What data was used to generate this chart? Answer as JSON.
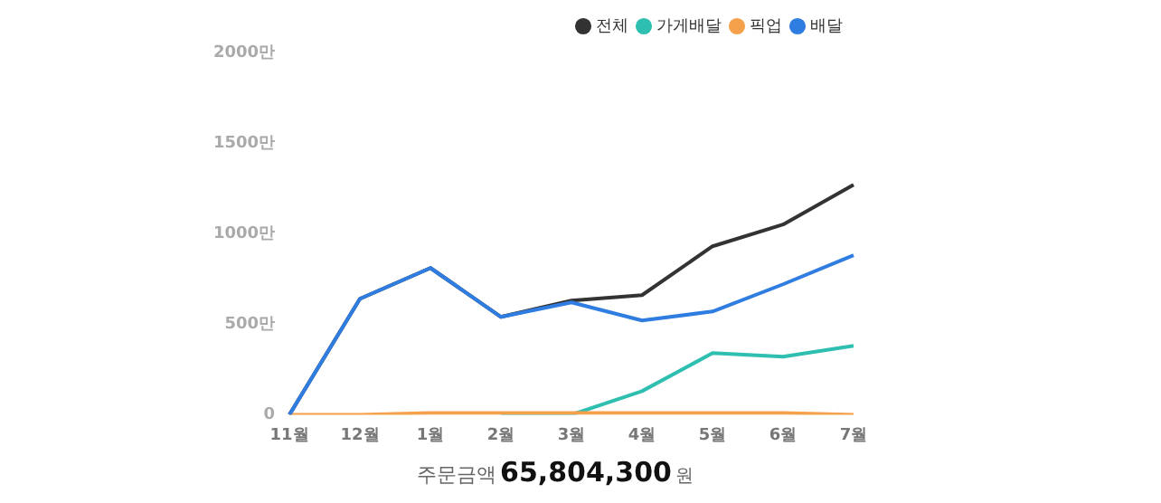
{
  "chart_data": {
    "type": "line",
    "categories": [
      "11월",
      "12월",
      "1월",
      "2월",
      "3월",
      "4월",
      "5월",
      "6월",
      "7월"
    ],
    "series": [
      {
        "name": "전체",
        "color": "#333333",
        "values": [
          0,
          640,
          810,
          540,
          630,
          660,
          930,
          1050,
          1270
        ]
      },
      {
        "name": "가게배달",
        "color": "#2ebfb0",
        "values": [
          null,
          null,
          null,
          0,
          0,
          130,
          340,
          320,
          380
        ]
      },
      {
        "name": "픽업",
        "color": "#f5a04a",
        "values": [
          0,
          0,
          10,
          10,
          10,
          10,
          10,
          10,
          0
        ]
      },
      {
        "name": "배달",
        "color": "#2f7de1",
        "values": [
          0,
          640,
          810,
          540,
          620,
          520,
          570,
          720,
          880
        ]
      }
    ],
    "ylim": [
      0,
      2000
    ],
    "yticks": [
      {
        "value": 0,
        "label": "0"
      },
      {
        "value": 500,
        "label": "500만"
      },
      {
        "value": 1000,
        "label": "1000만"
      },
      {
        "value": 1500,
        "label": "1500만"
      },
      {
        "value": 2000,
        "label": "2000만"
      }
    ],
    "grid": false,
    "legend": "top right",
    "marker": "none",
    "line_style": "solid",
    "annotations": [
      "주문금액",
      "65,804,300",
      "원"
    ]
  }
}
